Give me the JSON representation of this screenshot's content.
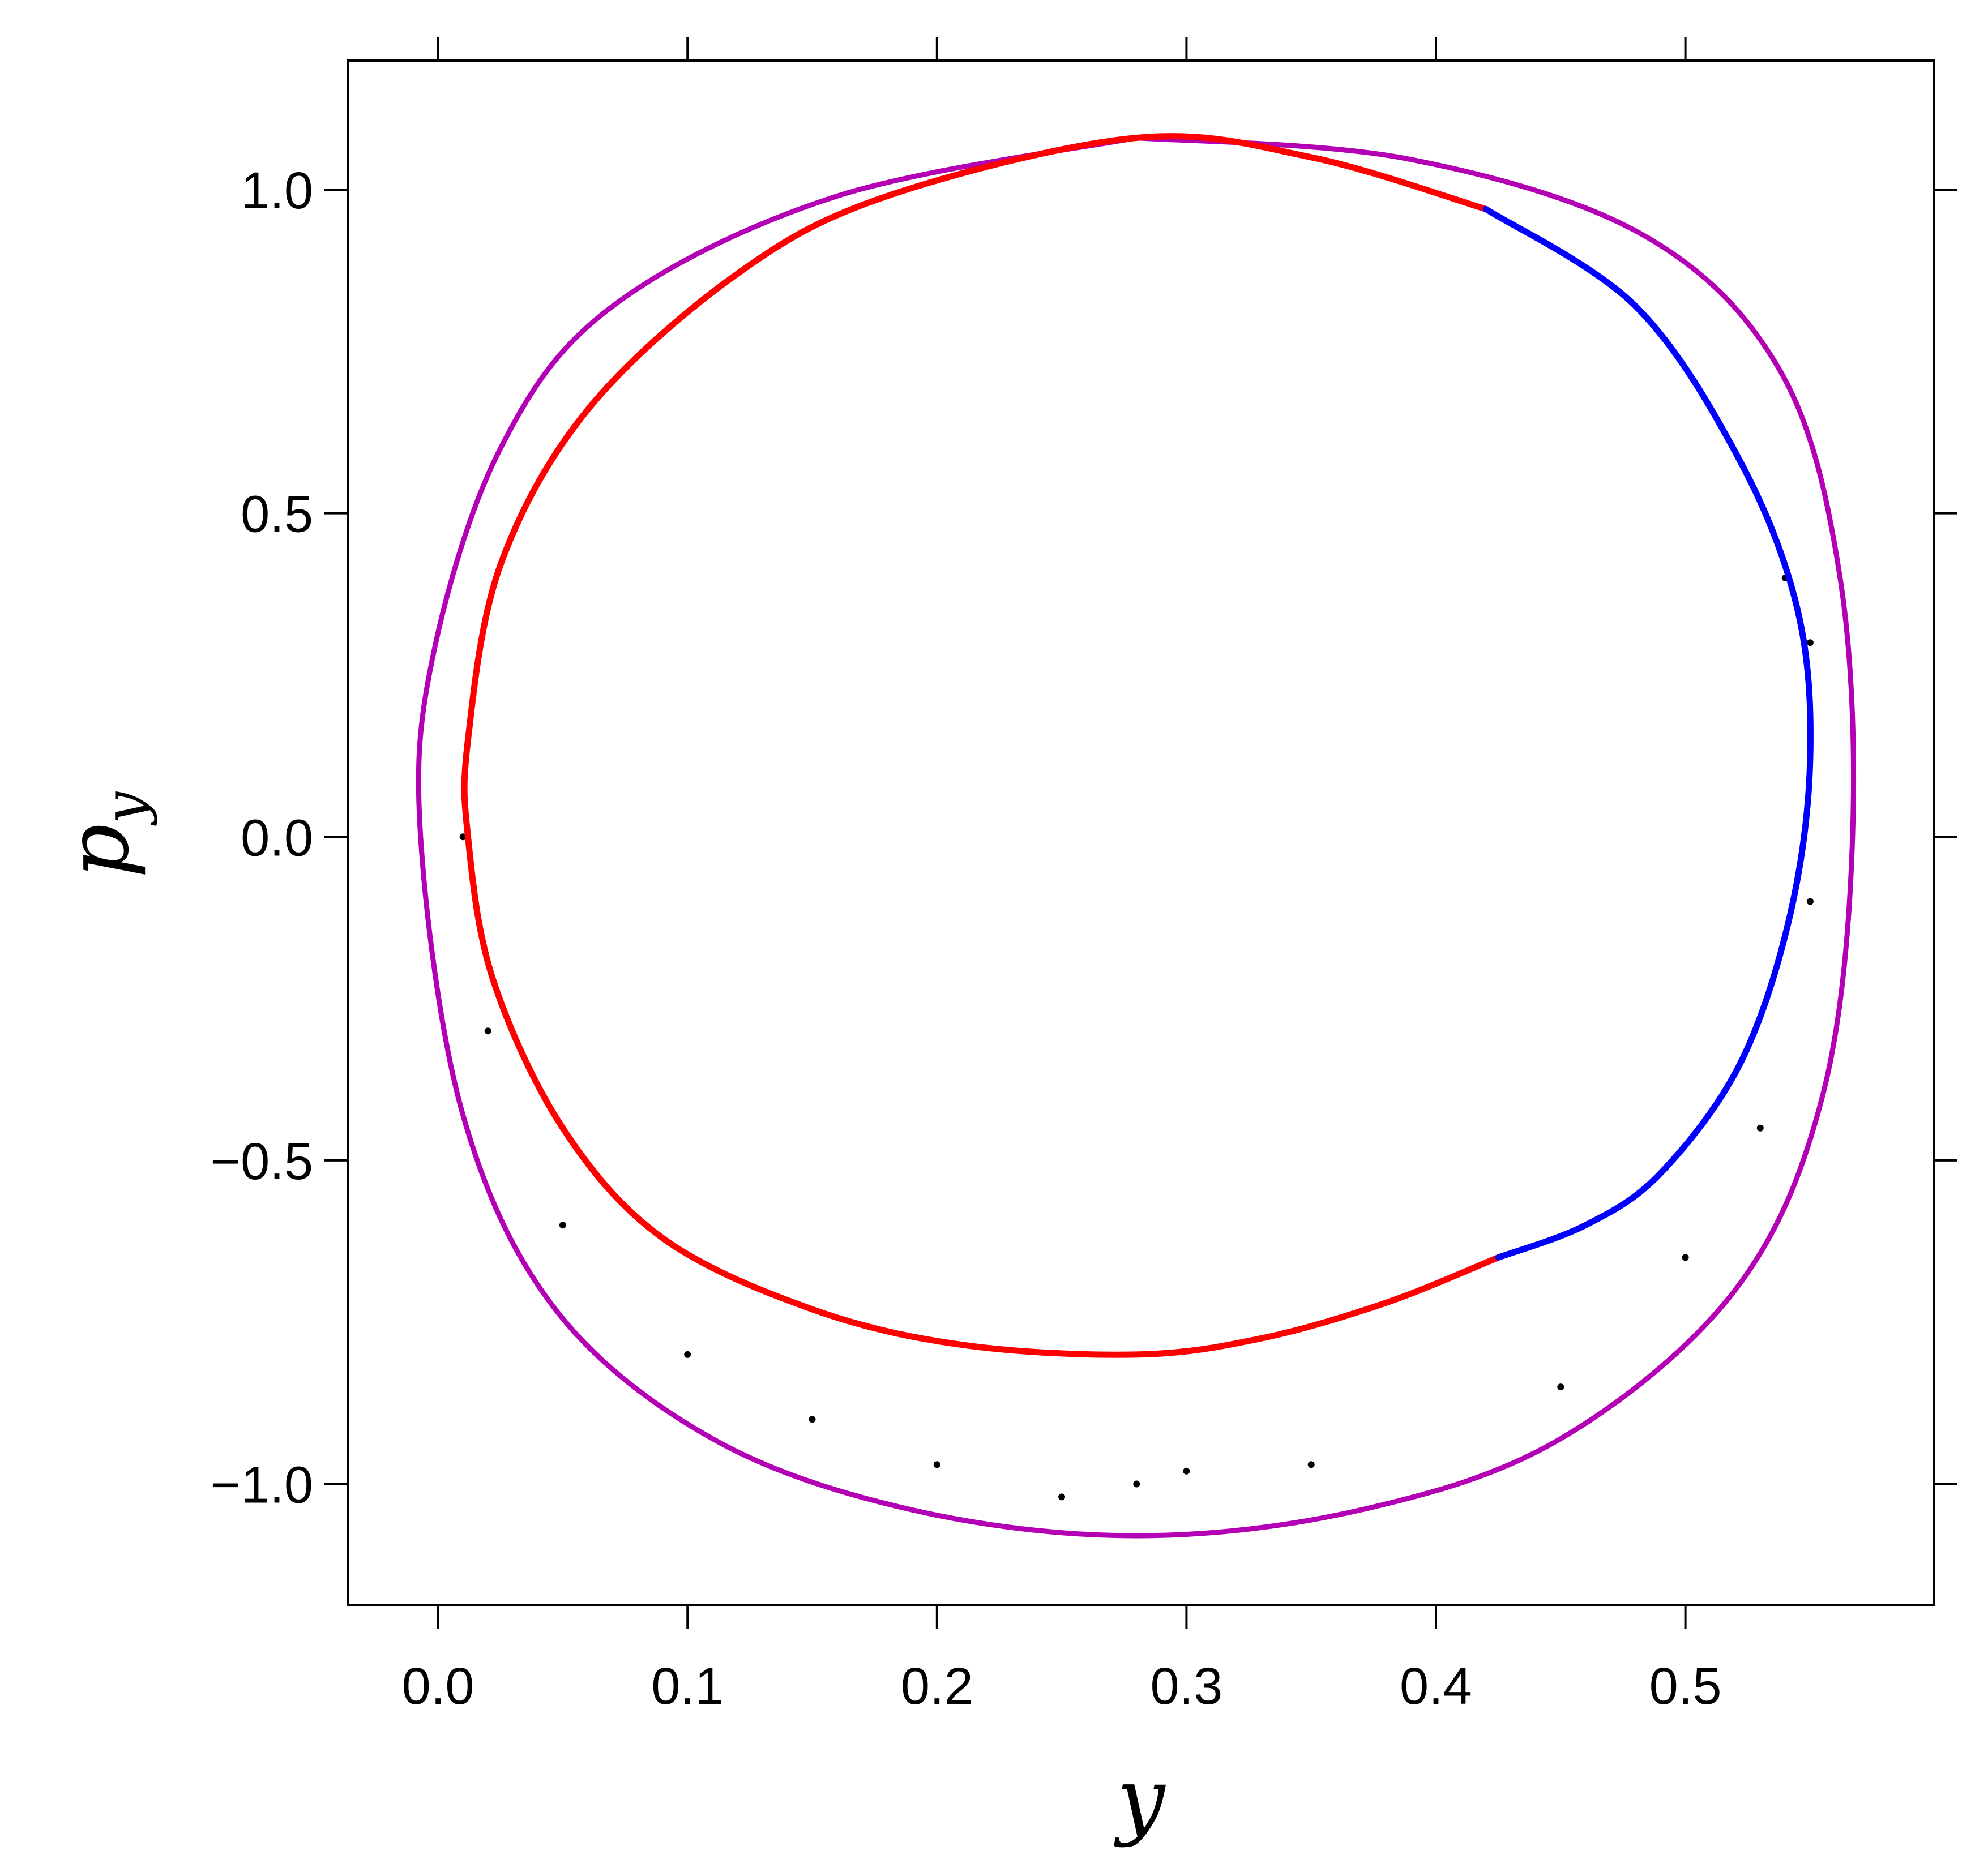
{
  "chart_data": {
    "type": "scatter",
    "title": "",
    "xlabel": "y",
    "ylabel": "p",
    "ylabel_subscript": "y",
    "xlim": [
      -0.036,
      0.5995
    ],
    "ylim": [
      -1.1867,
      1.1994
    ],
    "x_ticks": [
      0.0,
      0.1,
      0.2,
      0.3,
      0.4,
      0.5
    ],
    "x_tick_labels": [
      "0.0",
      "0.1",
      "0.2",
      "0.3",
      "0.4",
      "0.5"
    ],
    "y_ticks": [
      1.0,
      0.5,
      0.0,
      -0.5,
      -1.0
    ],
    "y_tick_labels": [
      "1.0",
      "0.5",
      "0.0",
      "−0.5",
      "−1.0"
    ],
    "grid": false,
    "legend": "none",
    "colors": {
      "boundary": "#b400b4",
      "inner_red": "#ff0000",
      "inner_blue": "#0000ff",
      "points": "#000000",
      "axes": "#000000"
    },
    "series": [
      {
        "kind": "curve",
        "color_key": "boundary",
        "points": [
          [
            0.28,
            1.08
          ],
          [
            0.388,
            1.048
          ],
          [
            0.483,
            0.93
          ],
          [
            0.538,
            0.72
          ],
          [
            0.562,
            0.4
          ],
          [
            0.567,
            0.0
          ],
          [
            0.555,
            -0.4
          ],
          [
            0.52,
            -0.7
          ],
          [
            0.45,
            -0.93
          ],
          [
            0.37,
            -1.04
          ],
          [
            0.28,
            -1.08
          ],
          [
            0.19,
            -1.04
          ],
          [
            0.11,
            -0.93
          ],
          [
            0.047,
            -0.73
          ],
          [
            0.01,
            -0.43
          ],
          [
            -0.007,
            0.0
          ],
          [
            -0.002,
            0.28
          ],
          [
            0.025,
            0.6
          ],
          [
            0.07,
            0.82
          ],
          [
            0.16,
            0.99
          ],
          [
            0.28,
            1.08
          ]
        ]
      },
      {
        "kind": "curve",
        "color_key": "inner_red",
        "points": [
          [
            0.425,
            -0.65
          ],
          [
            0.38,
            -0.72
          ],
          [
            0.33,
            -0.775
          ],
          [
            0.28,
            -0.8
          ],
          [
            0.21,
            -0.785
          ],
          [
            0.15,
            -0.73
          ],
          [
            0.09,
            -0.62
          ],
          [
            0.05,
            -0.45
          ],
          [
            0.022,
            -0.22
          ],
          [
            0.012,
            0.0
          ],
          [
            0.012,
            0.15
          ],
          [
            0.025,
            0.42
          ],
          [
            0.06,
            0.66
          ],
          [
            0.12,
            0.87
          ],
          [
            0.18,
            0.99
          ],
          [
            0.28,
            1.08
          ],
          [
            0.35,
            1.05
          ],
          [
            0.42,
            0.97
          ]
        ]
      },
      {
        "kind": "curve",
        "color_key": "inner_blue",
        "points": [
          [
            0.42,
            0.97
          ],
          [
            0.48,
            0.82
          ],
          [
            0.522,
            0.58
          ],
          [
            0.545,
            0.35
          ],
          [
            0.55,
            0.12
          ],
          [
            0.542,
            -0.12
          ],
          [
            0.522,
            -0.35
          ],
          [
            0.49,
            -0.52
          ],
          [
            0.46,
            -0.6
          ],
          [
            0.425,
            -0.65
          ]
        ]
      },
      {
        "kind": "scatter",
        "color_key": "points",
        "region": "annulus between the purple boundary and the red-blue inner curve, densest near py = -1.0",
        "sample_points": [
          [
            0.28,
            -1.0
          ],
          [
            0.3,
            -0.98
          ],
          [
            0.25,
            -1.02
          ],
          [
            0.35,
            -0.97
          ],
          [
            0.2,
            -0.97
          ],
          [
            0.15,
            -0.9
          ],
          [
            0.1,
            -0.8
          ],
          [
            0.05,
            -0.6
          ],
          [
            0.02,
            -0.3
          ],
          [
            0.01,
            0.0
          ],
          [
            0.45,
            -0.85
          ],
          [
            0.5,
            -0.65
          ],
          [
            0.53,
            -0.45
          ],
          [
            0.55,
            -0.1
          ],
          [
            0.55,
            0.3
          ],
          [
            0.54,
            0.4
          ]
        ]
      }
    ]
  }
}
